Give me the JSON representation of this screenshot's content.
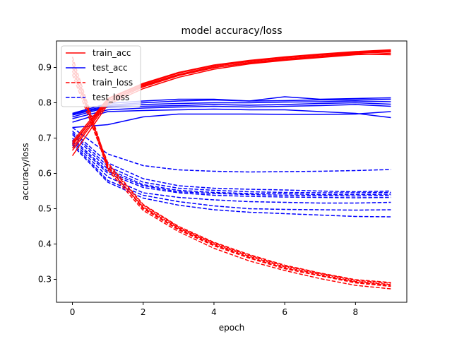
{
  "chart_data": {
    "type": "line",
    "title": "model accuracy/loss",
    "xlabel": "epoch",
    "ylabel": "accuracy/loss",
    "xlim": [
      -0.45,
      9.45
    ],
    "ylim": [
      0.235,
      0.975
    ],
    "x": [
      0,
      1,
      2,
      3,
      4,
      5,
      6,
      7,
      8,
      9
    ],
    "xticks": [
      "0",
      "2",
      "4",
      "6",
      "8"
    ],
    "xtick_values": [
      0,
      2,
      4,
      6,
      8
    ],
    "yticks": [
      "0.3",
      "0.4",
      "0.5",
      "0.6",
      "0.7",
      "0.8",
      "0.9"
    ],
    "ytick_values": [
      0.3,
      0.4,
      0.5,
      0.6,
      0.7,
      0.8,
      0.9
    ],
    "grid": false,
    "legend": {
      "placement": "top-left",
      "entries": [
        {
          "label": "train_acc",
          "color": "#ff0000",
          "dash": "solid"
        },
        {
          "label": "test_acc",
          "color": "#0000ff",
          "dash": "solid"
        },
        {
          "label": "train_loss",
          "color": "#ff0000",
          "dash": "dashed"
        },
        {
          "label": "test_loss",
          "color": "#0000ff",
          "dash": "dashed"
        }
      ]
    },
    "series": [
      {
        "group": "train_acc",
        "color": "#ff0000",
        "dash": "solid",
        "values": [
          0.65,
          0.795,
          0.84,
          0.872,
          0.895,
          0.91,
          0.92,
          0.928,
          0.936,
          0.94
        ]
      },
      {
        "group": "train_acc",
        "color": "#ff0000",
        "dash": "solid",
        "values": [
          0.665,
          0.8,
          0.845,
          0.877,
          0.899,
          0.914,
          0.924,
          0.932,
          0.94,
          0.944
        ]
      },
      {
        "group": "train_acc",
        "color": "#ff0000",
        "dash": "solid",
        "values": [
          0.672,
          0.805,
          0.85,
          0.88,
          0.903,
          0.917,
          0.927,
          0.935,
          0.942,
          0.946
        ]
      },
      {
        "group": "train_acc",
        "color": "#ff0000",
        "dash": "solid",
        "values": [
          0.68,
          0.81,
          0.853,
          0.884,
          0.906,
          0.919,
          0.929,
          0.937,
          0.944,
          0.948
        ]
      },
      {
        "group": "train_acc",
        "color": "#ff0000",
        "dash": "solid",
        "values": [
          0.685,
          0.805,
          0.848,
          0.878,
          0.9,
          0.912,
          0.922,
          0.93,
          0.938,
          0.936
        ]
      },
      {
        "group": "train_acc",
        "color": "#ff0000",
        "dash": "solid",
        "values": [
          0.69,
          0.812,
          0.855,
          0.886,
          0.907,
          0.92,
          0.93,
          0.938,
          0.945,
          0.95
        ]
      },
      {
        "group": "test_acc",
        "color": "#0000ff",
        "dash": "solid",
        "values": [
          0.73,
          0.738,
          0.76,
          0.768,
          0.768,
          0.768,
          0.767,
          0.767,
          0.768,
          0.775
        ]
      },
      {
        "group": "test_acc",
        "color": "#0000ff",
        "dash": "solid",
        "values": [
          0.745,
          0.775,
          0.778,
          0.78,
          0.782,
          0.78,
          0.78,
          0.775,
          0.77,
          0.758
        ]
      },
      {
        "group": "test_acc",
        "color": "#0000ff",
        "dash": "solid",
        "values": [
          0.755,
          0.78,
          0.785,
          0.788,
          0.79,
          0.788,
          0.79,
          0.792,
          0.795,
          0.79
        ]
      },
      {
        "group": "test_acc",
        "color": "#0000ff",
        "dash": "solid",
        "values": [
          0.76,
          0.788,
          0.79,
          0.792,
          0.795,
          0.793,
          0.795,
          0.798,
          0.8,
          0.796
        ]
      },
      {
        "group": "test_acc",
        "color": "#0000ff",
        "dash": "solid",
        "values": [
          0.765,
          0.79,
          0.795,
          0.798,
          0.8,
          0.8,
          0.802,
          0.803,
          0.805,
          0.803
        ]
      },
      {
        "group": "test_acc",
        "color": "#0000ff",
        "dash": "solid",
        "values": [
          0.768,
          0.793,
          0.8,
          0.805,
          0.808,
          0.805,
          0.806,
          0.808,
          0.808,
          0.81
        ]
      },
      {
        "group": "test_acc",
        "color": "#0000ff",
        "dash": "solid",
        "values": [
          0.77,
          0.798,
          0.805,
          0.81,
          0.81,
          0.805,
          0.817,
          0.81,
          0.812,
          0.814
        ]
      },
      {
        "group": "train_loss",
        "color": "#ff0000",
        "dash": "dashed",
        "values": [
          0.93,
          0.62,
          0.5,
          0.44,
          0.395,
          0.36,
          0.33,
          0.31,
          0.29,
          0.28
        ]
      },
      {
        "group": "train_loss",
        "color": "#ff0000",
        "dash": "dashed",
        "values": [
          0.92,
          0.615,
          0.505,
          0.445,
          0.4,
          0.365,
          0.335,
          0.314,
          0.294,
          0.285
        ]
      },
      {
        "group": "train_loss",
        "color": "#ff0000",
        "dash": "dashed",
        "values": [
          0.91,
          0.61,
          0.495,
          0.435,
          0.388,
          0.352,
          0.325,
          0.302,
          0.283,
          0.273
        ]
      },
      {
        "group": "train_loss",
        "color": "#ff0000",
        "dash": "dashed",
        "values": [
          0.9,
          0.625,
          0.51,
          0.448,
          0.403,
          0.368,
          0.338,
          0.317,
          0.297,
          0.289
        ]
      },
      {
        "group": "train_loss",
        "color": "#ff0000",
        "dash": "dashed",
        "values": [
          0.89,
          0.63,
          0.512,
          0.45,
          0.405,
          0.37,
          0.34,
          0.318,
          0.299,
          0.291
        ]
      },
      {
        "group": "train_loss",
        "color": "#ff0000",
        "dash": "dashed",
        "values": [
          0.88,
          0.618,
          0.503,
          0.442,
          0.398,
          0.362,
          0.332,
          0.311,
          0.292,
          0.283
        ]
      },
      {
        "group": "test_loss",
        "color": "#0000ff",
        "dash": "dashed",
        "values": [
          0.73,
          0.655,
          0.622,
          0.61,
          0.606,
          0.604,
          0.605,
          0.606,
          0.608,
          0.611
        ]
      },
      {
        "group": "test_loss",
        "color": "#0000ff",
        "dash": "dashed",
        "values": [
          0.72,
          0.63,
          0.585,
          0.565,
          0.558,
          0.555,
          0.553,
          0.55,
          0.548,
          0.55
        ]
      },
      {
        "group": "test_loss",
        "color": "#0000ff",
        "dash": "dashed",
        "values": [
          0.715,
          0.62,
          0.575,
          0.558,
          0.552,
          0.548,
          0.546,
          0.545,
          0.545,
          0.546
        ]
      },
      {
        "group": "test_loss",
        "color": "#0000ff",
        "dash": "dashed",
        "values": [
          0.71,
          0.612,
          0.568,
          0.552,
          0.546,
          0.543,
          0.542,
          0.54,
          0.54,
          0.541
        ]
      },
      {
        "group": "test_loss",
        "color": "#0000ff",
        "dash": "dashed",
        "values": [
          0.7,
          0.605,
          0.565,
          0.548,
          0.543,
          0.54,
          0.538,
          0.537,
          0.536,
          0.538
        ]
      },
      {
        "group": "test_loss",
        "color": "#0000ff",
        "dash": "dashed",
        "values": [
          0.695,
          0.6,
          0.56,
          0.545,
          0.538,
          0.535,
          0.533,
          0.532,
          0.531,
          0.532
        ]
      },
      {
        "group": "test_loss",
        "color": "#0000ff",
        "dash": "dashed",
        "values": [
          0.69,
          0.59,
          0.545,
          0.532,
          0.525,
          0.52,
          0.518,
          0.516,
          0.516,
          0.518
        ]
      },
      {
        "group": "test_loss",
        "color": "#0000ff",
        "dash": "dashed",
        "values": [
          0.685,
          0.58,
          0.538,
          0.52,
          0.508,
          0.5,
          0.498,
          0.497,
          0.496,
          0.497
        ]
      },
      {
        "group": "test_loss",
        "color": "#0000ff",
        "dash": "dashed",
        "values": [
          0.68,
          0.575,
          0.53,
          0.51,
          0.497,
          0.49,
          0.486,
          0.482,
          0.478,
          0.477
        ]
      }
    ]
  }
}
